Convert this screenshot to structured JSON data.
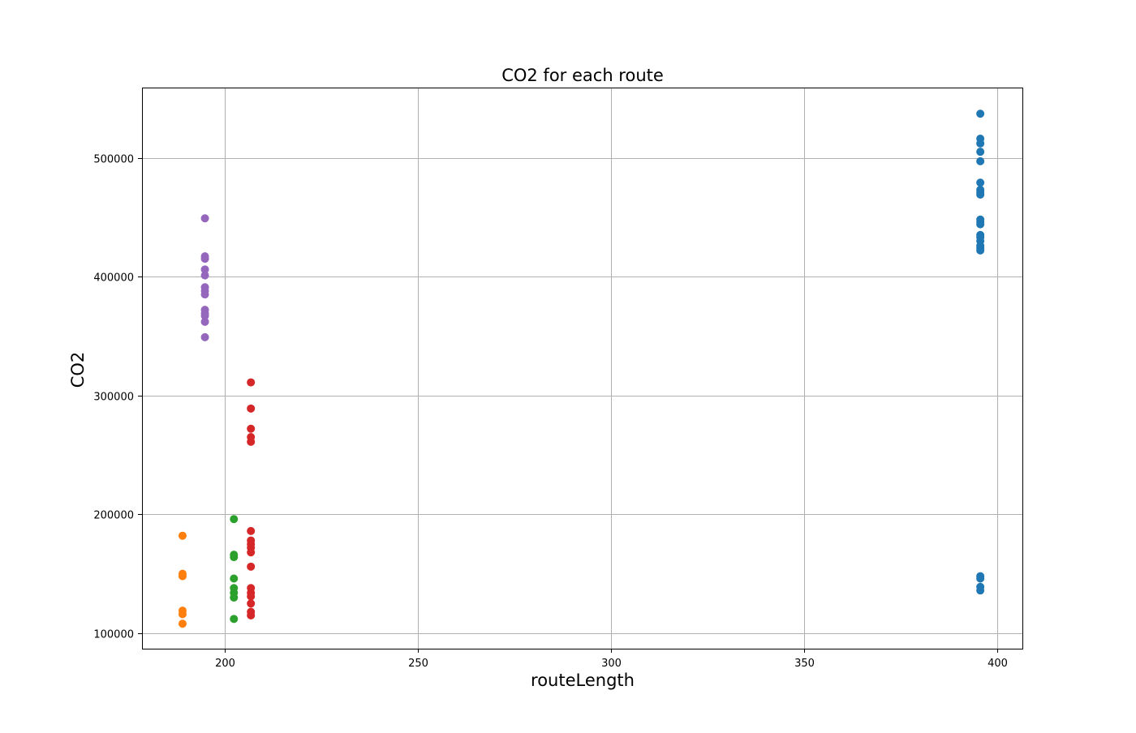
{
  "chart_data": {
    "type": "scatter",
    "title": "CO2 for each route",
    "xlabel": "routeLength",
    "ylabel": "CO2",
    "xlim": [
      178.5,
      406.5
    ],
    "ylim": [
      87000,
      559000
    ],
    "xticks": [
      200,
      250,
      300,
      350,
      400
    ],
    "yticks": [
      100000,
      200000,
      300000,
      400000,
      500000
    ],
    "grid": true,
    "series": [
      {
        "color": "#1f77b4",
        "points": [
          [
            395.6,
            537000
          ],
          [
            395.6,
            516000
          ],
          [
            395.6,
            512000
          ],
          [
            395.6,
            505000
          ],
          [
            395.6,
            497000
          ],
          [
            395.6,
            479000
          ],
          [
            395.6,
            473000
          ],
          [
            395.6,
            471000
          ],
          [
            395.6,
            469000
          ],
          [
            395.6,
            448000
          ],
          [
            395.6,
            446000
          ],
          [
            395.6,
            444000
          ],
          [
            395.6,
            435000
          ],
          [
            395.6,
            433000
          ],
          [
            395.6,
            430000
          ],
          [
            395.6,
            426000
          ],
          [
            395.6,
            424000
          ],
          [
            395.6,
            422000
          ],
          [
            395.6,
            148000
          ],
          [
            395.6,
            146000
          ],
          [
            395.6,
            139000
          ],
          [
            395.6,
            136000
          ]
        ]
      },
      {
        "color": "#ff7f0e",
        "points": [
          [
            189.0,
            182000
          ],
          [
            189.0,
            150000
          ],
          [
            189.0,
            148000
          ],
          [
            189.0,
            119000
          ],
          [
            189.0,
            116000
          ],
          [
            189.0,
            108000
          ]
        ]
      },
      {
        "color": "#2ca02c",
        "points": [
          [
            202.3,
            196000
          ],
          [
            202.3,
            166000
          ],
          [
            202.3,
            164000
          ],
          [
            202.3,
            146000
          ],
          [
            202.3,
            138000
          ],
          [
            202.3,
            134000
          ],
          [
            202.3,
            130000
          ],
          [
            202.3,
            112000
          ]
        ]
      },
      {
        "color": "#d62728",
        "points": [
          [
            206.7,
            311000
          ],
          [
            206.7,
            289000
          ],
          [
            206.7,
            272000
          ],
          [
            206.7,
            265000
          ],
          [
            206.7,
            261000
          ],
          [
            206.7,
            186000
          ],
          [
            206.7,
            178000
          ],
          [
            206.7,
            175000
          ],
          [
            206.7,
            172000
          ],
          [
            206.7,
            168000
          ],
          [
            206.7,
            156000
          ],
          [
            206.7,
            138000
          ],
          [
            206.7,
            134000
          ],
          [
            206.7,
            131000
          ],
          [
            206.7,
            125000
          ],
          [
            206.7,
            118000
          ],
          [
            206.7,
            115000
          ]
        ]
      },
      {
        "color": "#9467bd",
        "points": [
          [
            194.8,
            449000
          ],
          [
            194.8,
            417000
          ],
          [
            194.8,
            415000
          ],
          [
            194.8,
            406000
          ],
          [
            194.8,
            401000
          ],
          [
            194.8,
            391000
          ],
          [
            194.8,
            388000
          ],
          [
            194.8,
            385000
          ],
          [
            194.8,
            372000
          ],
          [
            194.8,
            369000
          ],
          [
            194.8,
            367000
          ],
          [
            194.8,
            362000
          ],
          [
            194.8,
            349000
          ]
        ]
      }
    ]
  }
}
